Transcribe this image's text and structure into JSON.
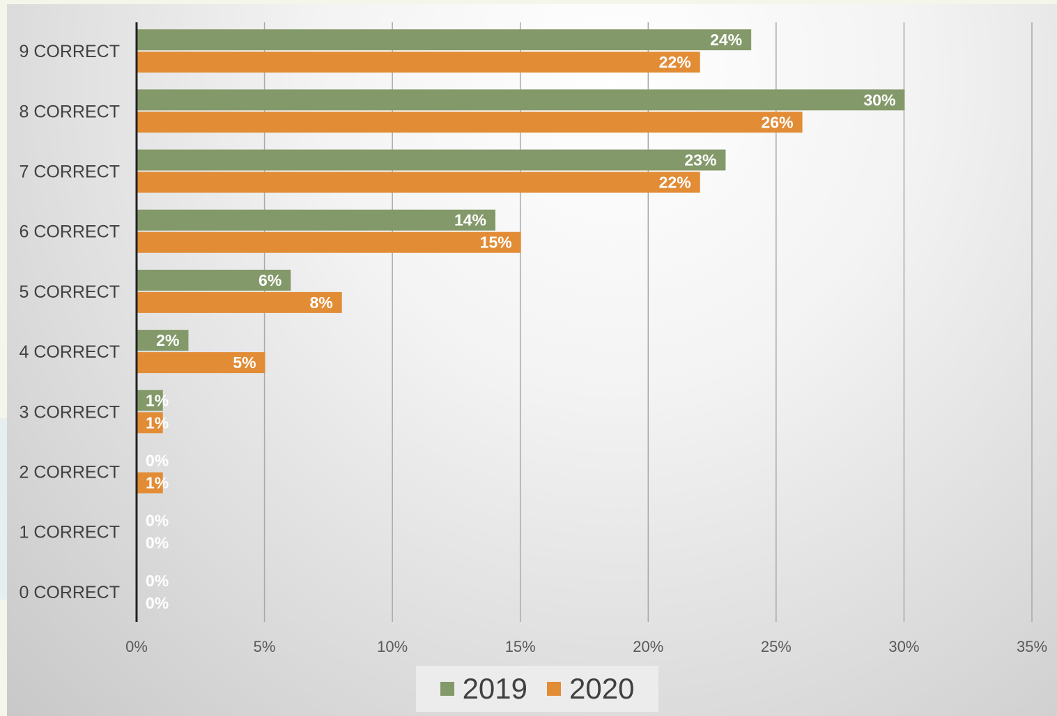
{
  "chart_data": {
    "type": "bar",
    "orientation": "horizontal",
    "categories": [
      "9 CORRECT",
      "8 CORRECT",
      "7 CORRECT",
      "6 CORRECT",
      "5 CORRECT",
      "4 CORRECT",
      "3 CORRECT",
      "2 CORRECT",
      "1 CORRECT",
      "0 CORRECT"
    ],
    "series": [
      {
        "name": "2019",
        "color": "#84996a",
        "values": [
          24,
          30,
          23,
          14,
          6,
          2,
          1,
          0,
          0,
          0
        ],
        "labels": [
          "24%",
          "30%",
          "23%",
          "14%",
          "6%",
          "2%",
          "1%",
          "0%",
          "0%",
          "0%"
        ]
      },
      {
        "name": "2020",
        "color": "#e28c36",
        "values": [
          22,
          26,
          22,
          15,
          8,
          5,
          1,
          1,
          0,
          0
        ],
        "labels": [
          "22%",
          "26%",
          "22%",
          "15%",
          "8%",
          "5%",
          "1%",
          "1%",
          "0%",
          "0%"
        ]
      }
    ],
    "xlim": [
      0,
      35
    ],
    "xticks": [
      0,
      5,
      10,
      15,
      20,
      25,
      30,
      35
    ],
    "xtick_labels": [
      "0%",
      "5%",
      "10%",
      "15%",
      "20%",
      "25%",
      "30%",
      "35%"
    ],
    "grid": true,
    "legend_position": "bottom"
  },
  "legend": {
    "items": [
      {
        "label": "2019",
        "color": "#84996a"
      },
      {
        "label": "2020",
        "color": "#e28c36"
      }
    ]
  }
}
